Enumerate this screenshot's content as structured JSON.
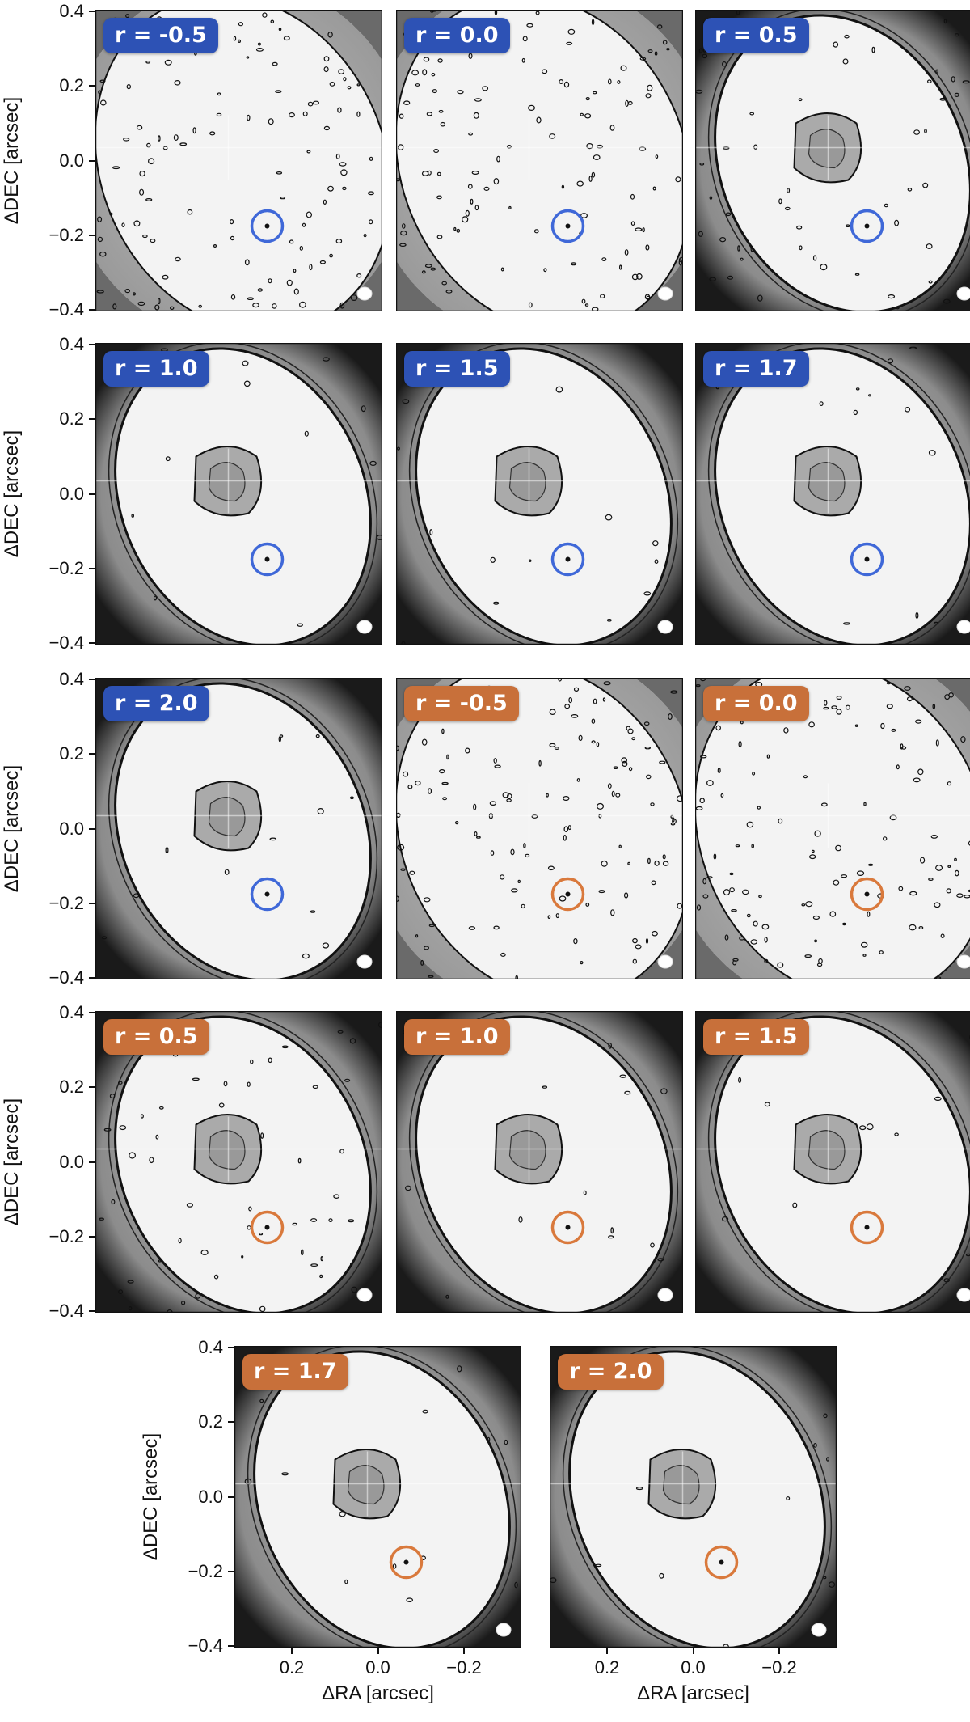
{
  "figure": {
    "ylabel": "ΔDEC [arcsec]",
    "xlabel": "ΔRA [arcsec]",
    "yticks": [
      "0.4",
      "0.2",
      "0.0",
      "−0.2",
      "−0.4"
    ],
    "xticks": [
      "0.2",
      "0.0",
      "−0.2"
    ],
    "colors": {
      "blue_group": "#2d52b5",
      "orange_group": "#c8703a",
      "blue_circle": "#3f68d8",
      "orange_circle": "#d9793c"
    },
    "panels": [
      {
        "label": "r = -0.5",
        "group": "blue"
      },
      {
        "label": "r = 0.0",
        "group": "blue"
      },
      {
        "label": "r = 0.5",
        "group": "blue"
      },
      {
        "label": "r = 1.0",
        "group": "blue"
      },
      {
        "label": "r = 1.5",
        "group": "blue"
      },
      {
        "label": "r = 1.7",
        "group": "blue"
      },
      {
        "label": "r = 2.0",
        "group": "blue"
      },
      {
        "label": "r = -0.5",
        "group": "orange"
      },
      {
        "label": "r = 0.0",
        "group": "orange"
      },
      {
        "label": "r = 0.5",
        "group": "orange"
      },
      {
        "label": "r = 1.0",
        "group": "orange"
      },
      {
        "label": "r = 1.5",
        "group": "orange"
      },
      {
        "label": "r = 1.7",
        "group": "orange"
      },
      {
        "label": "r = 2.0",
        "group": "orange"
      }
    ]
  }
}
